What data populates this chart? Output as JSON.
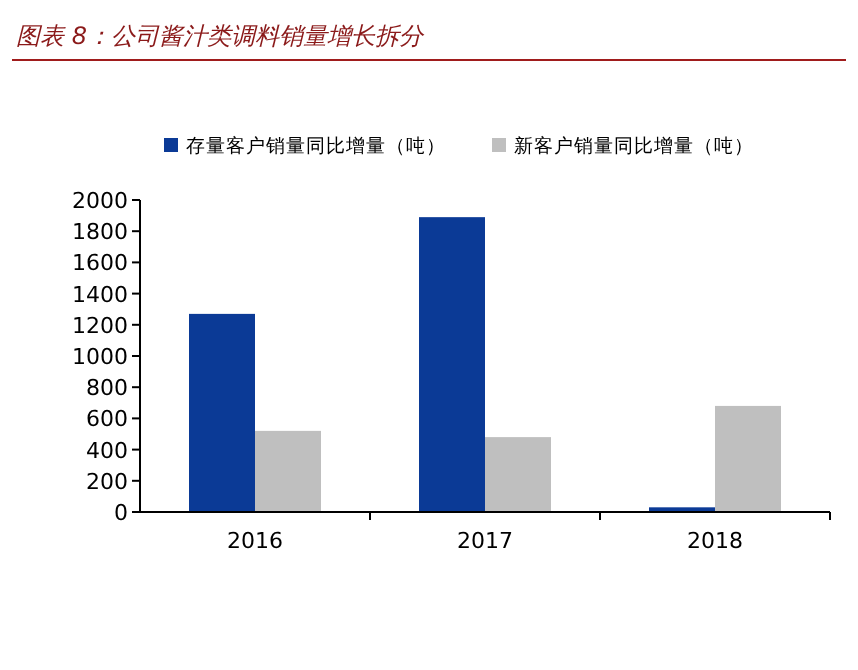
{
  "chart_data": {
    "type": "bar",
    "title": "图表 8：公司酱汁类调料销量增长拆分",
    "categories": [
      "2016",
      "2017",
      "2018"
    ],
    "series": [
      {
        "name": "存量客户销量同比增量（吨）",
        "color": "#0b3a96",
        "values": [
          1270,
          1890,
          30
        ]
      },
      {
        "name": "新客户销量同比增量（吨）",
        "color": "#bfbfbf",
        "values": [
          520,
          480,
          680
        ]
      }
    ],
    "ylim": [
      0,
      2000
    ],
    "yticks": [
      0,
      200,
      400,
      600,
      800,
      1000,
      1200,
      1400,
      1600,
      1800,
      2000
    ],
    "grid": false,
    "legend": "top"
  }
}
